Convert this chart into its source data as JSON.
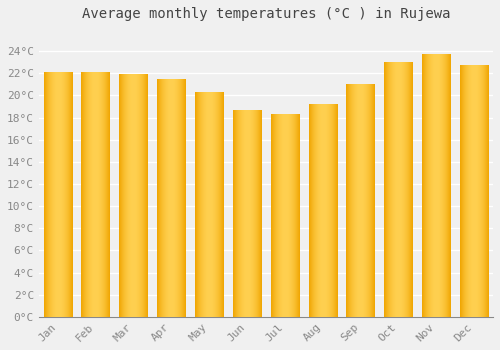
{
  "months": [
    "Jan",
    "Feb",
    "Mar",
    "Apr",
    "May",
    "Jun",
    "Jul",
    "Aug",
    "Sep",
    "Oct",
    "Nov",
    "Dec"
  ],
  "values": [
    22.1,
    22.1,
    21.9,
    21.5,
    20.3,
    18.7,
    18.3,
    19.2,
    21.0,
    23.0,
    23.7,
    22.7
  ],
  "bar_color_dark": "#F0A500",
  "bar_color_mid": "#FFD050",
  "title": "Average monthly temperatures (°C ) in Rujewa",
  "ylim": [
    0,
    26
  ],
  "yticks": [
    0,
    2,
    4,
    6,
    8,
    10,
    12,
    14,
    16,
    18,
    20,
    22,
    24
  ],
  "ytick_labels": [
    "0°C",
    "2°C",
    "4°C",
    "6°C",
    "8°C",
    "10°C",
    "12°C",
    "14°C",
    "16°C",
    "18°C",
    "20°C",
    "22°C",
    "24°C"
  ],
  "background_color": "#f0f0f0",
  "plot_bg_color": "#f0f0f0",
  "grid_color": "#ffffff",
  "title_fontsize": 10,
  "tick_fontsize": 8,
  "tick_color": "#888888",
  "title_color": "#444444"
}
